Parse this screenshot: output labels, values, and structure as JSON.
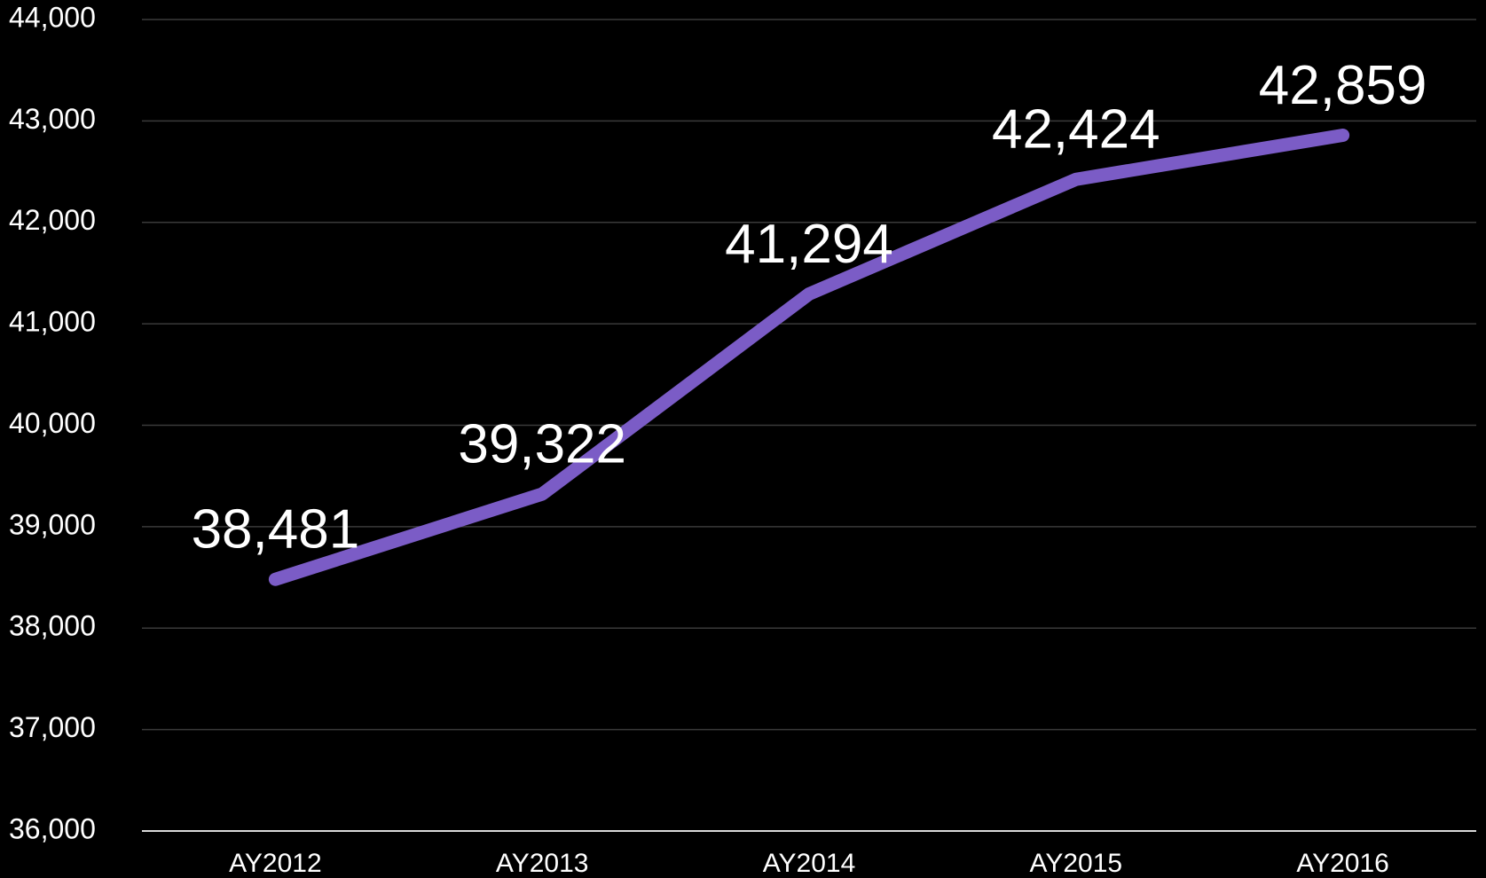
{
  "chart_data": {
    "type": "line",
    "categories": [
      "AY2012",
      "AY2013",
      "AY2014",
      "AY2015",
      "AY2016"
    ],
    "series": [
      {
        "color": "#7b5cc6",
        "values": [
          38481,
          39322,
          41294,
          42424,
          42859
        ],
        "value_labels": [
          "38,481",
          "39,322",
          "41,294",
          "42,424",
          "42,859"
        ]
      }
    ],
    "ylim": [
      36000,
      44000
    ],
    "yticks": [
      {
        "value": 36000,
        "label": "36,000"
      },
      {
        "value": 37000,
        "label": "37,000"
      },
      {
        "value": 38000,
        "label": "38,000"
      },
      {
        "value": 39000,
        "label": "39,000"
      },
      {
        "value": 40000,
        "label": "40,000"
      },
      {
        "value": 41000,
        "label": "41,000"
      },
      {
        "value": 42000,
        "label": "42,000"
      },
      {
        "value": 43000,
        "label": "43,000"
      },
      {
        "value": 44000,
        "label": "44,000"
      }
    ],
    "grid": true
  }
}
